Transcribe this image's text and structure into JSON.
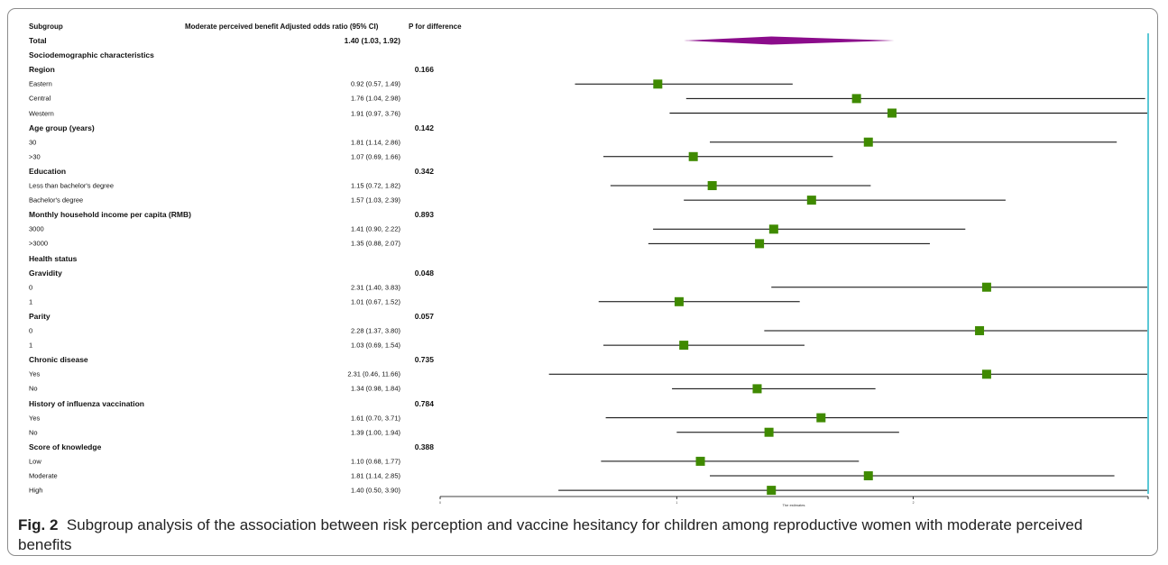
{
  "table": {
    "headers": {
      "subgroup": "Subgroup",
      "or": "Moderate perceived benefit Adjusted odds ratio (95% CI)",
      "p": "P for difference"
    }
  },
  "caption": {
    "label": "Fig. 2",
    "text": "Subgroup analysis of the association between risk perception and vaccine hesitancy for children among reproductive women with moderate perceived benefits"
  },
  "colors": {
    "marker": "#3f8a00",
    "diamond": "#8b0c8b",
    "ref_line": "#5bc8d6",
    "whisker": "#000000"
  },
  "chart_data": {
    "type": "forest",
    "xlabel": "The estimates",
    "x_ticks": [
      "0",
      "1",
      "2"
    ],
    "xlim": [
      0,
      3
    ],
    "reference_line": 3,
    "rows": [
      {
        "label": "Total",
        "or_text": "1.40 (1.03, 1.92)",
        "p": "",
        "bold": true,
        "est": 1.4,
        "lo": 1.03,
        "hi": 1.92,
        "summary": true
      },
      {
        "label": "Sociodemographic characteristics",
        "or_text": "",
        "p": "",
        "bold": true
      },
      {
        "label": "Region",
        "or_text": "",
        "p": "0.166",
        "bold": true
      },
      {
        "label": "Eastern",
        "or_text": "0.92 (0.57, 1.49)",
        "p": "",
        "bold": false,
        "est": 0.92,
        "lo": 0.57,
        "hi": 1.49
      },
      {
        "label": "Central",
        "or_text": "1.76 (1.04, 2.98)",
        "p": "",
        "bold": false,
        "est": 1.76,
        "lo": 1.04,
        "hi": 2.98
      },
      {
        "label": "Western",
        "or_text": "1.91 (0.97, 3.76)",
        "p": "",
        "bold": false,
        "est": 1.91,
        "lo": 0.97,
        "hi": 3.76
      },
      {
        "label": "Age group (years)",
        "or_text": "",
        "p": "0.142",
        "bold": true
      },
      {
        "label": "30",
        "or_text": "1.81 (1.14, 2.86)",
        "p": "",
        "bold": false,
        "est": 1.81,
        "lo": 1.14,
        "hi": 2.86
      },
      {
        "label": ">30",
        "or_text": "1.07 (0.69, 1.66)",
        "p": "",
        "bold": false,
        "est": 1.07,
        "lo": 0.69,
        "hi": 1.66
      },
      {
        "label": "Education",
        "or_text": "",
        "p": "0.342",
        "bold": true
      },
      {
        "label": "Less than bachelor's degree",
        "or_text": "1.15 (0.72, 1.82)",
        "p": "",
        "bold": false,
        "est": 1.15,
        "lo": 0.72,
        "hi": 1.82
      },
      {
        "label": "Bachelor's degree",
        "or_text": "1.57 (1.03, 2.39)",
        "p": "",
        "bold": false,
        "est": 1.57,
        "lo": 1.03,
        "hi": 2.39
      },
      {
        "label": "Monthly household income per capita (RMB)",
        "or_text": "",
        "p": "0.893",
        "bold": true
      },
      {
        "label": "3000",
        "or_text": "1.41 (0.90, 2.22)",
        "p": "",
        "bold": false,
        "est": 1.41,
        "lo": 0.9,
        "hi": 2.22
      },
      {
        "label": " >3000",
        "or_text": "1.35 (0.88, 2.07)",
        "p": "",
        "bold": false,
        "est": 1.35,
        "lo": 0.88,
        "hi": 2.07
      },
      {
        "label": "Health status",
        "or_text": "",
        "p": "",
        "bold": true
      },
      {
        "label": "Gravidity",
        "or_text": "",
        "p": "0.048",
        "bold": true
      },
      {
        "label": "0",
        "or_text": "2.31 (1.40, 3.83)",
        "p": "",
        "bold": false,
        "est": 2.31,
        "lo": 1.4,
        "hi": 3.83
      },
      {
        "label": "1",
        "or_text": "1.01 (0.67, 1.52)",
        "p": "",
        "bold": false,
        "est": 1.01,
        "lo": 0.67,
        "hi": 1.52
      },
      {
        "label": "Parity",
        "or_text": "",
        "p": "0.057",
        "bold": true
      },
      {
        "label": "0",
        "or_text": "2.28 (1.37, 3.80)",
        "p": "",
        "bold": false,
        "est": 2.28,
        "lo": 1.37,
        "hi": 3.8
      },
      {
        "label": "1",
        "or_text": "1.03 (0.69, 1.54)",
        "p": "",
        "bold": false,
        "est": 1.03,
        "lo": 0.69,
        "hi": 1.54
      },
      {
        "label": "Chronic disease",
        "or_text": "",
        "p": "0.735",
        "bold": true
      },
      {
        "label": "Yes",
        "or_text": "2.31 (0.46, 11.66)",
        "p": "",
        "bold": false,
        "est": 2.31,
        "lo": 0.46,
        "hi": 11.66
      },
      {
        "label": "No",
        "or_text": "1.34 (0.98, 1.84)",
        "p": "",
        "bold": false,
        "est": 1.34,
        "lo": 0.98,
        "hi": 1.84
      },
      {
        "label": "History of influenza vaccination",
        "or_text": "",
        "p": "0.784",
        "bold": true
      },
      {
        "label": "Yes",
        "or_text": "1.61 (0.70, 3.71)",
        "p": "",
        "bold": false,
        "est": 1.61,
        "lo": 0.7,
        "hi": 3.71
      },
      {
        "label": "No",
        "or_text": "1.39 (1.00, 1.94)",
        "p": "",
        "bold": false,
        "est": 1.39,
        "lo": 1.0,
        "hi": 1.94
      },
      {
        "label": "Score of knowledge",
        "or_text": "",
        "p": "0.388",
        "bold": true
      },
      {
        "label": "Low",
        "or_text": "1.10 (0.68, 1.77)",
        "p": "",
        "bold": false,
        "est": 1.1,
        "lo": 0.68,
        "hi": 1.77
      },
      {
        "label": "Moderate",
        "or_text": "1.81 (1.14, 2.85)",
        "p": "",
        "bold": false,
        "est": 1.81,
        "lo": 1.14,
        "hi": 2.85
      },
      {
        "label": "High",
        "or_text": "1.40 (0.50, 3.90)",
        "p": "",
        "bold": false,
        "est": 1.4,
        "lo": 0.5,
        "hi": 3.9
      }
    ]
  }
}
